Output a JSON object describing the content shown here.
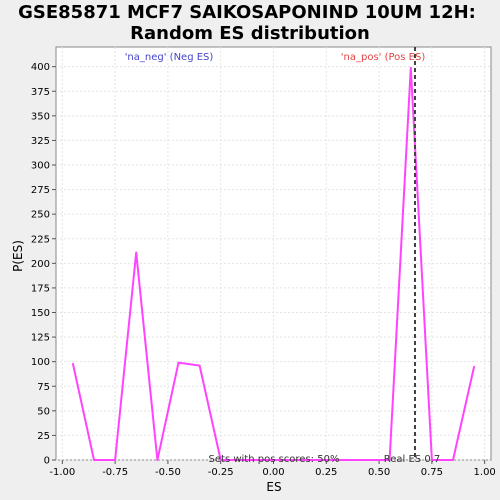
{
  "chart_data": {
    "type": "line",
    "title_lines": [
      "GSE85871 MCF7 SAIKOSAPONIND 10UM 12H:",
      "Random ES distribution"
    ],
    "xlabel": "ES",
    "ylabel": "P(ES)",
    "xlim": [
      -1.03,
      1.03
    ],
    "ylim": [
      0,
      420
    ],
    "x_ticks": [
      -1.0,
      -0.75,
      -0.5,
      -0.25,
      0.0,
      0.25,
      0.5,
      0.75,
      1.0
    ],
    "x_tick_labels": [
      "-1.00",
      "-0.75",
      "-0.50",
      "-0.25",
      "0.00",
      "0.25",
      "0.50",
      "0.75",
      "1.00"
    ],
    "y_ticks": [
      0,
      25,
      50,
      75,
      100,
      125,
      150,
      175,
      200,
      225,
      250,
      275,
      300,
      325,
      350,
      375,
      400
    ],
    "y_tick_labels": [
      "0",
      "25",
      "50",
      "75",
      "100",
      "125",
      "150",
      "175",
      "200",
      "225",
      "250",
      "275",
      "300",
      "325",
      "350",
      "375",
      "400"
    ],
    "grid": true,
    "series": [
      {
        "color": "#ff44ff",
        "x": [
          -0.95,
          -0.85,
          -0.75,
          -0.65,
          -0.55,
          -0.45,
          -0.35,
          -0.25,
          0.55,
          0.65,
          0.75,
          0.85,
          0.95
        ],
        "y": [
          98,
          0,
          0,
          211,
          0,
          99,
          96,
          0,
          0,
          399,
          0,
          0,
          95
        ]
      }
    ],
    "vline": {
      "x": 0.67,
      "color": "#404040",
      "style": "dashed"
    },
    "annotations": {
      "neg_label": "'na_neg' (Neg ES)",
      "neg_color": "#4444cc",
      "pos_label": "'na_pos' (Pos ES)",
      "pos_color": "#e04444",
      "bottom_note": "Sets with pos scores: 50%",
      "real_es": "Real ES 0.7"
    },
    "plot_background": "#ffffff"
  }
}
